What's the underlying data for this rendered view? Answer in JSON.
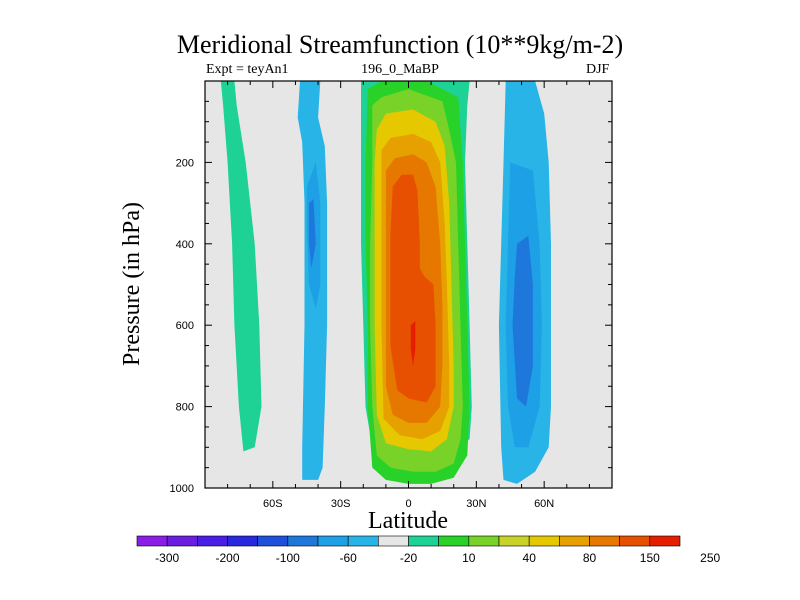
{
  "chart_data": {
    "type": "heatmap",
    "title": "Meridional Streamfunction (10**9kg/m-2)",
    "left_label": "Expt = teyAn1",
    "center_label": "196_0_MaBP",
    "right_label": "DJF",
    "xlabel": "Latitude",
    "ylabel": "Pressure (in hPa)",
    "xlim": [
      -90,
      90
    ],
    "ylim": [
      1000,
      0
    ],
    "x_ticks": [
      {
        "value": -60,
        "label": "60S"
      },
      {
        "value": -30,
        "label": "30S"
      },
      {
        "value": 0,
        "label": "0"
      },
      {
        "value": 30,
        "label": "30N"
      },
      {
        "value": 60,
        "label": "60N"
      }
    ],
    "y_ticks": [
      {
        "value": 200,
        "label": "200"
      },
      {
        "value": 400,
        "label": "400"
      },
      {
        "value": 600,
        "label": "600"
      },
      {
        "value": 800,
        "label": "800"
      },
      {
        "value": 1000,
        "label": "1000"
      }
    ],
    "background_color": "#e6e6e6",
    "colorbar": {
      "colors": [
        "#8a1ee6",
        "#6a1ee0",
        "#4a1ee6",
        "#2828dc",
        "#1e50dc",
        "#1e78dc",
        "#1ea0e6",
        "#28b4e6",
        "#e6e6e6",
        "#1ed296",
        "#28d228",
        "#78d228",
        "#c8d228",
        "#e6c800",
        "#e6a000",
        "#e67800",
        "#e65000",
        "#e61e00"
      ],
      "tick_labels": [
        "-300",
        "-200",
        "-100",
        "-60",
        "-20",
        "10",
        "40",
        "80",
        "150",
        "250"
      ]
    },
    "regions": [
      {
        "name": "sh-polar-cell",
        "level_color": "#1ed296",
        "polygon": [
          [
            -83,
            0
          ],
          [
            -77,
            0
          ],
          [
            -76,
            60
          ],
          [
            -72,
            200
          ],
          [
            -68,
            400
          ],
          [
            -66,
            600
          ],
          [
            -65,
            800
          ],
          [
            -68,
            900
          ],
          [
            -73,
            910
          ],
          [
            -75,
            800
          ],
          [
            -77,
            600
          ],
          [
            -78,
            400
          ],
          [
            -80,
            200
          ],
          [
            -82,
            60
          ]
        ]
      },
      {
        "name": "sh-ferrel-outer",
        "level_color": "#28b4e6",
        "polygon": [
          [
            -48,
            0
          ],
          [
            -39,
            0
          ],
          [
            -40,
            90
          ],
          [
            -37,
            160
          ],
          [
            -36,
            300
          ],
          [
            -36,
            600
          ],
          [
            -37,
            800
          ],
          [
            -38,
            950
          ],
          [
            -40,
            980
          ],
          [
            -47,
            980
          ],
          [
            -47,
            900
          ],
          [
            -46,
            600
          ],
          [
            -46,
            300
          ],
          [
            -47,
            150
          ],
          [
            -49,
            90
          ]
        ]
      },
      {
        "name": "sh-ferrel-inner",
        "level_color": "#1ea0e6",
        "polygon": [
          [
            -45,
            260
          ],
          [
            -41,
            200
          ],
          [
            -39,
            300
          ],
          [
            -39,
            500
          ],
          [
            -41,
            560
          ],
          [
            -44,
            500
          ],
          [
            -45,
            350
          ]
        ]
      },
      {
        "name": "sh-ferrel-core",
        "level_color": "#1e78dc",
        "polygon": [
          [
            -44,
            300
          ],
          [
            -42,
            290
          ],
          [
            -41,
            400
          ],
          [
            -43,
            460
          ],
          [
            -44,
            400
          ]
        ]
      },
      {
        "name": "nh-ferrel-outer",
        "level_color": "#28b4e6",
        "polygon": [
          [
            43,
            0
          ],
          [
            56,
            0
          ],
          [
            58,
            40
          ],
          [
            60,
            80
          ],
          [
            62,
            200
          ],
          [
            63,
            400
          ],
          [
            63,
            600
          ],
          [
            63,
            800
          ],
          [
            62,
            900
          ],
          [
            56,
            960
          ],
          [
            48,
            990
          ],
          [
            42,
            980
          ],
          [
            41,
            900
          ],
          [
            40,
            600
          ],
          [
            41,
            400
          ],
          [
            42,
            200
          ]
        ]
      },
      {
        "name": "nh-ferrel-inner",
        "level_color": "#1ea0e6",
        "polygon": [
          [
            45,
            200
          ],
          [
            55,
            220
          ],
          [
            58,
            400
          ],
          [
            59,
            600
          ],
          [
            58,
            800
          ],
          [
            53,
            900
          ],
          [
            47,
            900
          ],
          [
            44,
            800
          ],
          [
            43,
            600
          ],
          [
            44,
            400
          ]
        ]
      },
      {
        "name": "nh-ferrel-core",
        "level_color": "#1e78dc",
        "polygon": [
          [
            48,
            400
          ],
          [
            53,
            380
          ],
          [
            55,
            500
          ],
          [
            55,
            700
          ],
          [
            52,
            800
          ],
          [
            48,
            780
          ],
          [
            46,
            600
          ],
          [
            47,
            480
          ]
        ]
      },
      {
        "name": "hadley-10",
        "level_color": "#1ed296",
        "polygon": [
          [
            -21,
            0
          ],
          [
            27,
            0
          ],
          [
            26,
            60
          ],
          [
            25,
            200
          ],
          [
            26,
            400
          ],
          [
            27,
            600
          ],
          [
            28,
            800
          ],
          [
            27,
            880
          ],
          [
            20,
            900
          ],
          [
            10,
            920
          ],
          [
            0,
            930
          ],
          [
            -10,
            920
          ],
          [
            -16,
            900
          ],
          [
            -19,
            800
          ],
          [
            -20,
            600
          ],
          [
            -21,
            400
          ],
          [
            -21,
            200
          ]
        ]
      },
      {
        "name": "hadley-40",
        "level_color": "#28d228",
        "polygon": [
          [
            -18,
            20
          ],
          [
            -12,
            0
          ],
          [
            8,
            0
          ],
          [
            22,
            40
          ],
          [
            24,
            200
          ],
          [
            25,
            400
          ],
          [
            26,
            600
          ],
          [
            27,
            800
          ],
          [
            26,
            920
          ],
          [
            20,
            975
          ],
          [
            10,
            990
          ],
          [
            0,
            990
          ],
          [
            -10,
            980
          ],
          [
            -16,
            950
          ],
          [
            -18,
            800
          ],
          [
            -18,
            600
          ],
          [
            -19,
            400
          ],
          [
            -19,
            200
          ]
        ]
      },
      {
        "name": "hadley-80",
        "level_color": "#78d228",
        "polygon": [
          [
            -16,
            60
          ],
          [
            -12,
            40
          ],
          [
            0,
            20
          ],
          [
            15,
            50
          ],
          [
            18,
            120
          ],
          [
            21,
            200
          ],
          [
            22,
            400
          ],
          [
            23,
            600
          ],
          [
            24,
            800
          ],
          [
            23,
            880
          ],
          [
            20,
            940
          ],
          [
            12,
            960
          ],
          [
            2,
            960
          ],
          [
            -8,
            950
          ],
          [
            -14,
            920
          ],
          [
            -16,
            800
          ],
          [
            -17,
            600
          ],
          [
            -17,
            400
          ],
          [
            -16,
            200
          ]
        ]
      },
      {
        "name": "hadley-150",
        "level_color": "#e6c800",
        "polygon": [
          [
            -14,
            120
          ],
          [
            -10,
            80
          ],
          [
            2,
            70
          ],
          [
            12,
            100
          ],
          [
            16,
            160
          ],
          [
            18,
            300
          ],
          [
            19,
            500
          ],
          [
            20,
            700
          ],
          [
            20,
            800
          ],
          [
            17,
            880
          ],
          [
            10,
            910
          ],
          [
            0,
            905
          ],
          [
            -10,
            890
          ],
          [
            -14,
            820
          ],
          [
            -15,
            600
          ],
          [
            -15,
            400
          ],
          [
            -15,
            200
          ]
        ]
      },
      {
        "name": "hadley-200",
        "level_color": "#e6a000",
        "polygon": [
          [
            -12,
            170
          ],
          [
            -8,
            140
          ],
          [
            2,
            130
          ],
          [
            10,
            150
          ],
          [
            14,
            200
          ],
          [
            16,
            350
          ],
          [
            17,
            500
          ],
          [
            18,
            700
          ],
          [
            18,
            800
          ],
          [
            14,
            860
          ],
          [
            6,
            880
          ],
          [
            -4,
            870
          ],
          [
            -11,
            830
          ],
          [
            -12,
            600
          ],
          [
            -12,
            400
          ],
          [
            -12,
            250
          ]
        ]
      },
      {
        "name": "hadley-250",
        "level_color": "#e67800",
        "polygon": [
          [
            -10,
            220
          ],
          [
            -6,
            190
          ],
          [
            2,
            180
          ],
          [
            8,
            200
          ],
          [
            12,
            260
          ],
          [
            14,
            400
          ],
          [
            15,
            550
          ],
          [
            15,
            700
          ],
          [
            14,
            800
          ],
          [
            8,
            840
          ],
          [
            0,
            840
          ],
          [
            -7,
            820
          ],
          [
            -10,
            750
          ],
          [
            -10,
            550
          ],
          [
            -10,
            400
          ]
        ]
      },
      {
        "name": "hadley-300",
        "level_color": "#e65000",
        "polygon": [
          [
            -7,
            260
          ],
          [
            -3,
            230
          ],
          [
            2,
            230
          ],
          [
            4,
            270
          ],
          [
            5,
            400
          ],
          [
            5,
            460
          ],
          [
            7,
            480
          ],
          [
            11,
            500
          ],
          [
            12,
            600
          ],
          [
            12,
            750
          ],
          [
            8,
            790
          ],
          [
            0,
            780
          ],
          [
            -5,
            760
          ],
          [
            -8,
            650
          ],
          [
            -8,
            500
          ],
          [
            -8,
            380
          ]
        ]
      },
      {
        "name": "hadley-core",
        "level_color": "#e61e00",
        "polygon": [
          [
            1,
            600
          ],
          [
            3,
            590
          ],
          [
            3,
            660
          ],
          [
            2,
            700
          ],
          [
            1,
            660
          ]
        ]
      }
    ]
  }
}
